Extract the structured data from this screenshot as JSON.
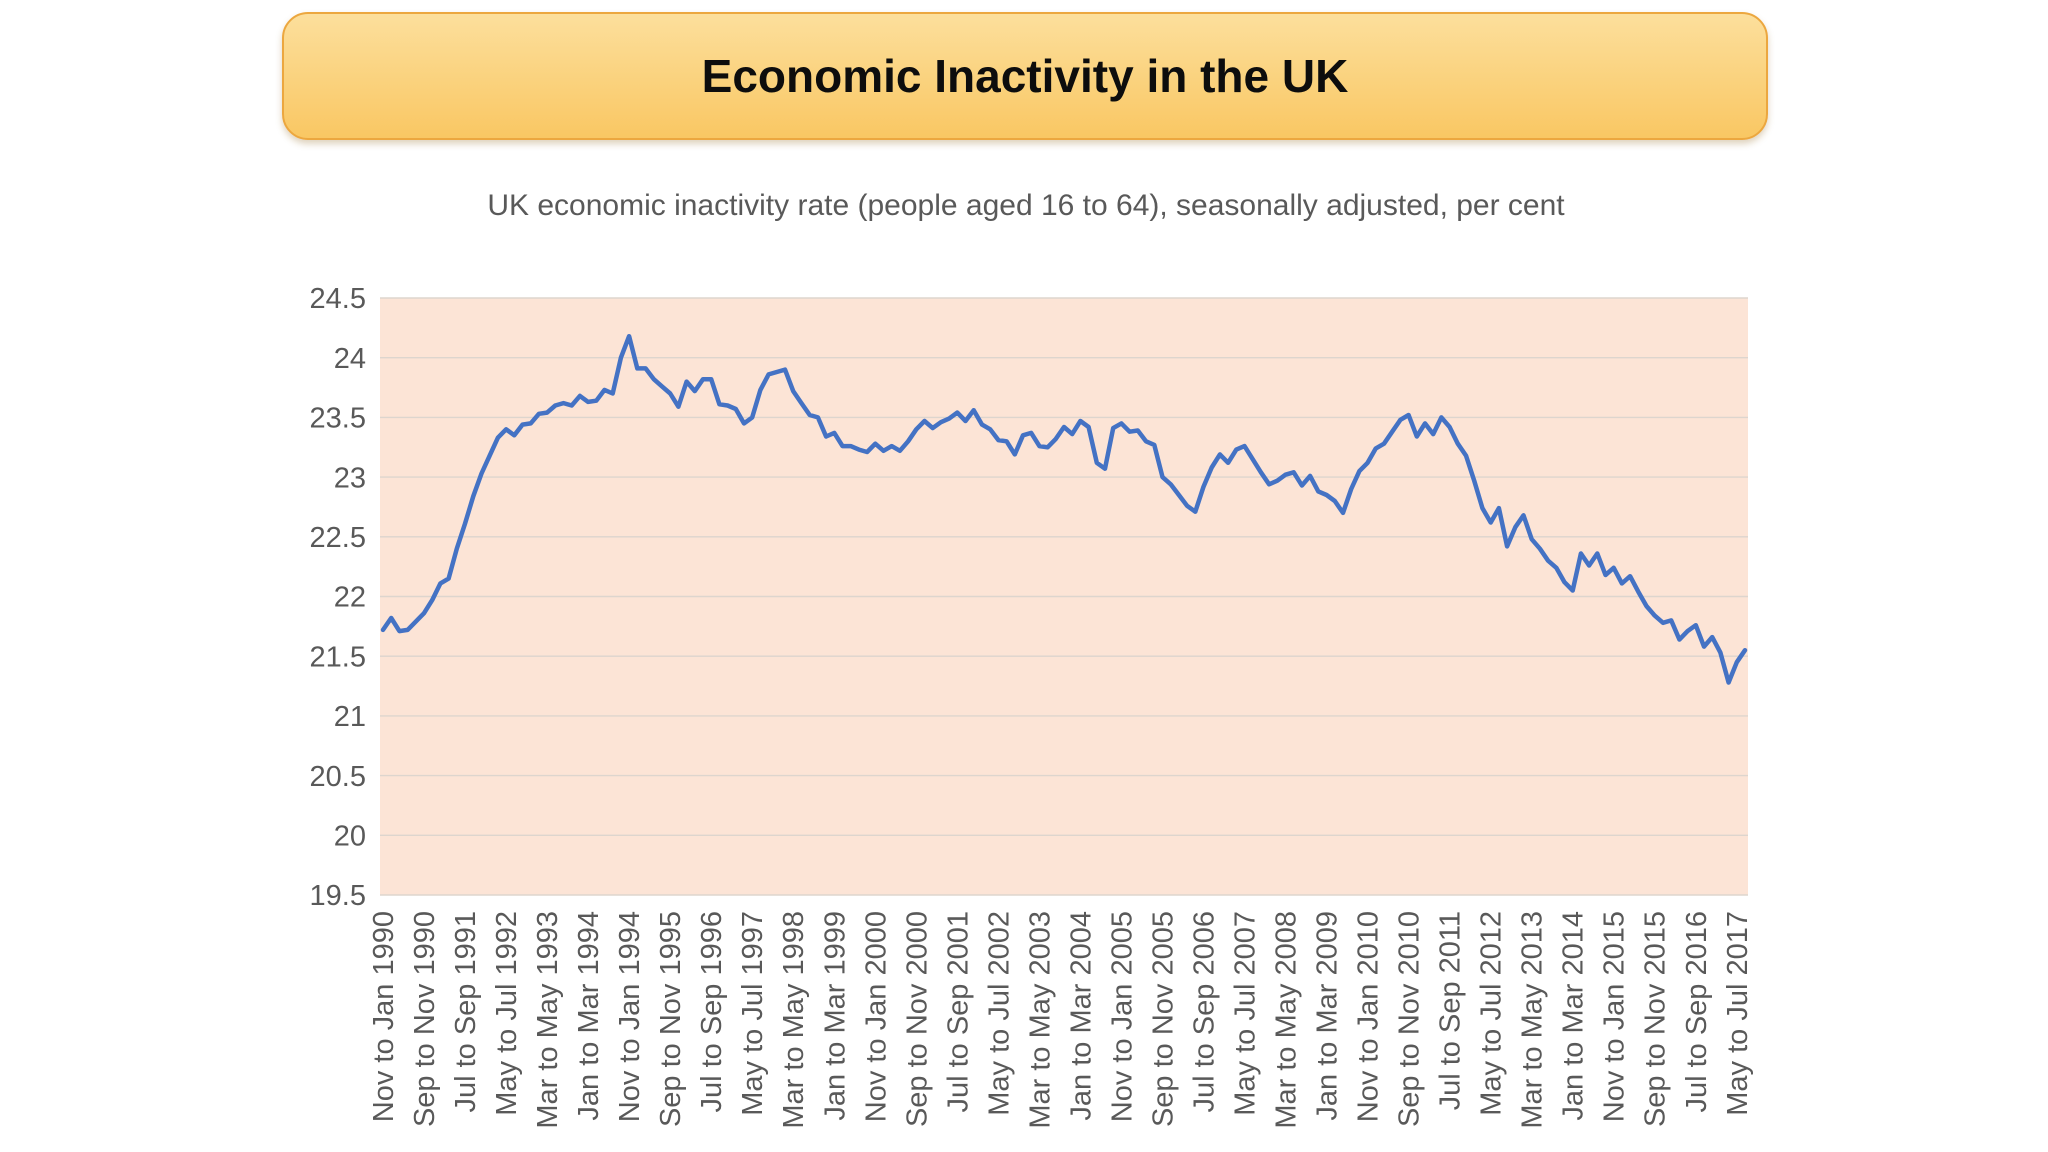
{
  "header": {
    "title": "Economic Inactivity in the UK"
  },
  "subtitle": "UK economic inactivity rate (people aged 16 to 64), seasonally adjusted, per cent",
  "colors": {
    "banner_top": "#fcdf9c",
    "banner_bottom": "#f9c763",
    "banner_border": "#eca73f",
    "plot_bg": "#fce4d6",
    "gridline": "#ddd5ce",
    "line": "#4472c4",
    "axis_text": "#595959",
    "title_text": "#0d0d0d"
  },
  "chart_data": {
    "type": "line",
    "title": "UK economic inactivity rate (people aged 16 to 64), seasonally adjusted, per cent",
    "xlabel": "",
    "ylabel": "",
    "ylim": [
      19.5,
      24.5
    ],
    "ytick_step": 0.5,
    "grid": true,
    "legend": false,
    "plot_background": "#fce4d6",
    "x_labels": [
      "Nov to Jan 1990",
      "Sep to Nov 1990",
      "Jul to Sep 1991",
      "May to Jul 1992",
      "Mar to May 1993",
      "Jan to Mar 1994",
      "Nov to Jan 1994",
      "Sep to Nov 1995",
      "Jul to Sep 1996",
      "May to Jul 1997",
      "Mar to May 1998",
      "Jan to Mar 1999",
      "Nov to Jan 2000",
      "Sep to Nov 2000",
      "Jul to Sep 2001",
      "May to Jul 2002",
      "Mar to May 2003",
      "Jan to Mar 2004",
      "Nov to Jan 2005",
      "Sep to Nov 2005",
      "Jul to Sep 2006",
      "May to Jul 2007",
      "Mar to May 2008",
      "Jan to Mar 2009",
      "Nov to Jan 2010",
      "Sep to Nov 2010",
      "Jul to Sep 2011",
      "May to Jul 2012",
      "Mar to May 2013",
      "Jan to Mar 2014",
      "Nov to Jan 2015",
      "Sep to Nov 2015",
      "Jul to Sep 2016",
      "May to Jul 2017"
    ],
    "label_every": 5,
    "series": [
      {
        "name": "UK economic inactivity rate",
        "values": [
          21.72,
          21.82,
          21.71,
          21.72,
          21.79,
          21.86,
          21.97,
          22.11,
          22.15,
          22.4,
          22.61,
          22.84,
          23.03,
          23.18,
          23.33,
          23.4,
          23.35,
          23.44,
          23.45,
          23.53,
          23.54,
          23.6,
          23.62,
          23.6,
          23.68,
          23.63,
          23.64,
          23.73,
          23.7,
          24.0,
          24.18,
          23.91,
          23.91,
          23.82,
          23.76,
          23.7,
          23.59,
          23.8,
          23.72,
          23.82,
          23.82,
          23.61,
          23.6,
          23.57,
          23.45,
          23.5,
          23.73,
          23.86,
          23.88,
          23.9,
          23.72,
          23.62,
          23.52,
          23.5,
          23.34,
          23.37,
          23.26,
          23.26,
          23.23,
          23.21,
          23.28,
          23.22,
          23.26,
          23.22,
          23.3,
          23.4,
          23.47,
          23.41,
          23.46,
          23.49,
          23.54,
          23.47,
          23.56,
          23.44,
          23.4,
          23.31,
          23.3,
          23.19,
          23.35,
          23.37,
          23.26,
          23.25,
          23.32,
          23.42,
          23.36,
          23.47,
          23.42,
          23.12,
          23.07,
          23.41,
          23.45,
          23.38,
          23.39,
          23.3,
          23.27,
          23.0,
          22.94,
          22.85,
          22.76,
          22.71,
          22.92,
          23.08,
          23.19,
          23.12,
          23.23,
          23.26,
          23.15,
          23.04,
          22.94,
          22.97,
          23.02,
          23.04,
          22.93,
          23.01,
          22.88,
          22.85,
          22.8,
          22.7,
          22.9,
          23.05,
          23.12,
          23.24,
          23.28,
          23.38,
          23.48,
          23.52,
          23.34,
          23.45,
          23.36,
          23.5,
          23.42,
          23.28,
          23.18,
          22.97,
          22.74,
          22.62,
          22.74,
          22.42,
          22.58,
          22.68,
          22.48,
          22.4,
          22.3,
          22.24,
          22.12,
          22.05,
          22.36,
          22.26,
          22.36,
          22.18,
          22.24,
          22.11,
          22.17,
          22.04,
          21.92,
          21.84,
          21.78,
          21.8,
          21.64,
          21.71,
          21.76,
          21.58,
          21.66,
          21.53,
          21.28,
          21.45,
          21.55
        ]
      }
    ]
  }
}
